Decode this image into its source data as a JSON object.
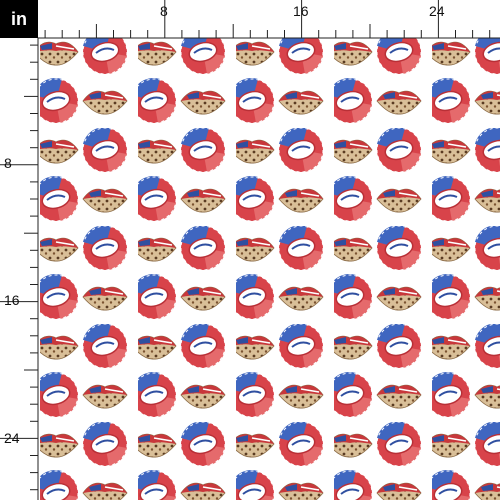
{
  "unit": "in",
  "top_ruler": {
    "labels": [
      "8",
      "16",
      "24"
    ]
  },
  "left_ruler": {
    "labels": [
      "8",
      "16",
      "24"
    ]
  }
}
